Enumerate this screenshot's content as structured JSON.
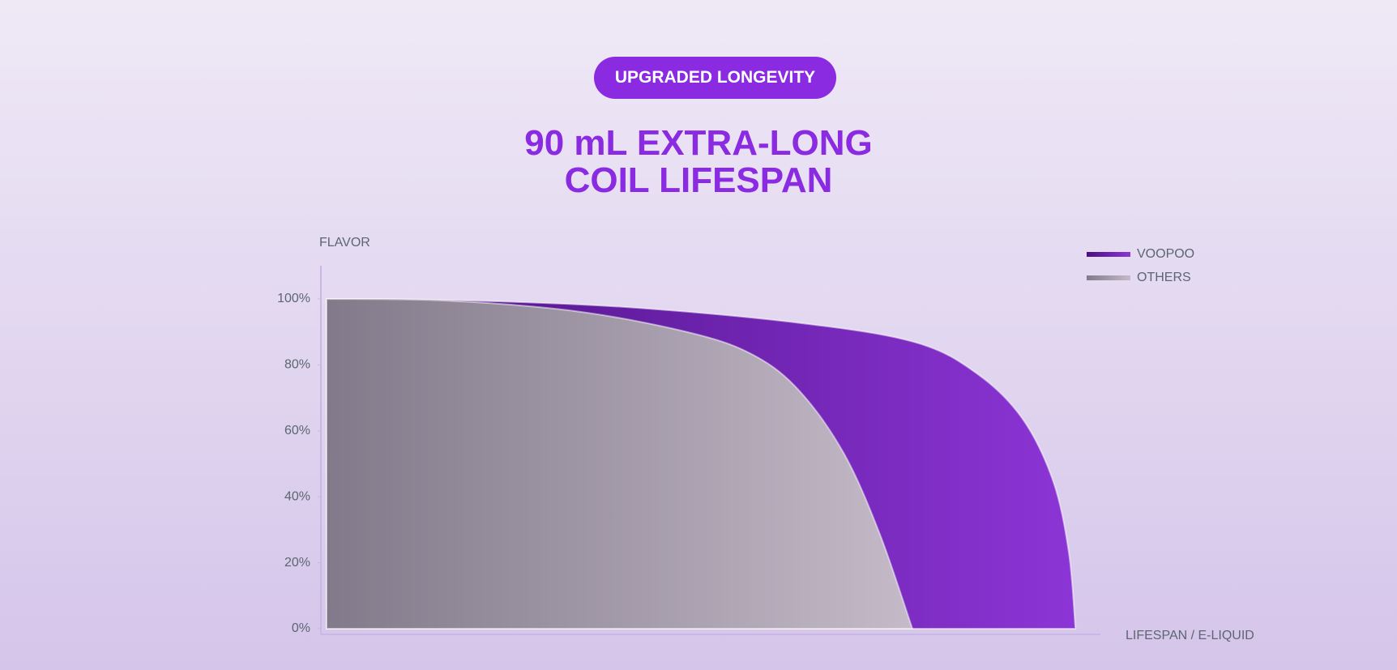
{
  "header": {
    "badge": "UPGRADED LONGEVITY",
    "title_lines": [
      "90 mL EXTRA-LONG",
      "COIL LIFESPAN"
    ]
  },
  "chart_data": {
    "type": "area",
    "x_label": "LIFESPAN / E-LIQUID",
    "y_label": "FLAVOR",
    "xlim": [
      0,
      93
    ],
    "ylim": [
      0,
      100
    ],
    "yticks": [
      {
        "value": 0,
        "label": "0%"
      },
      {
        "value": 20,
        "label": "20%"
      },
      {
        "value": 40,
        "label": "40%"
      },
      {
        "value": 60,
        "label": "60%"
      },
      {
        "value": 80,
        "label": "80%"
      },
      {
        "value": 100,
        "label": "100%"
      }
    ],
    "legend": "upper right",
    "series": [
      {
        "name": "VOOPOO",
        "color": "#8c35d6",
        "x": [
          0,
          14.2,
          35.5,
          56.9,
          70.8,
          78.2,
          83.6,
          87.3,
          89.2,
          90
        ],
        "values": [
          100,
          99.7,
          97.6,
          92.7,
          86.8,
          77.3,
          63.8,
          44.9,
          23.2,
          0
        ]
      },
      {
        "name": "OTHERS",
        "color": "#c4bac8",
        "x": [
          0,
          14.2,
          30.2,
          44.1,
          51.5,
          56.9,
          62.2,
          66.5,
          70.4
        ],
        "values": [
          100,
          99.5,
          96.2,
          89.5,
          82.7,
          71.9,
          53,
          28.6,
          0
        ]
      }
    ]
  }
}
